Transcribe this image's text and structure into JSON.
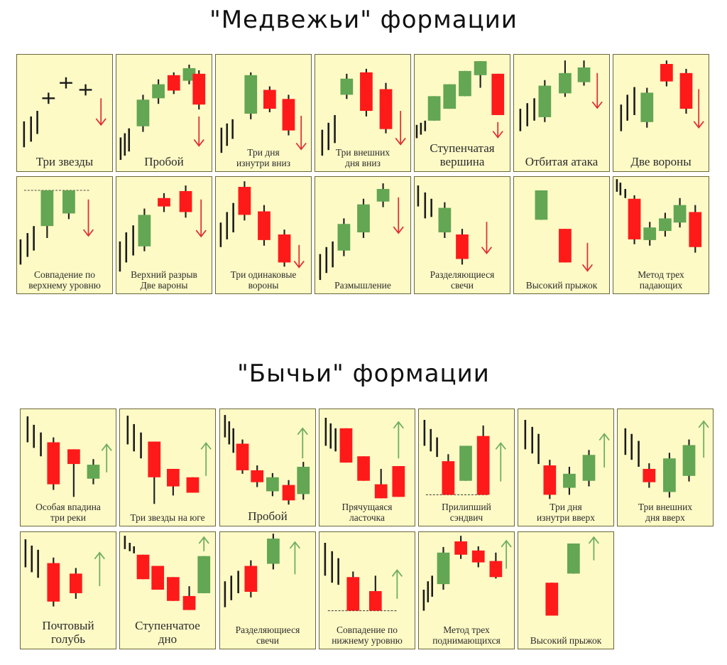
{
  "titles": {
    "bearish": "\"Медвежьи\" формации",
    "bullish": "\"Бычьи\" формации"
  },
  "colors": {
    "panel_background": "#fdfac6",
    "panel_border": "#6a6638",
    "bearish_candle": "#ff1a1a",
    "bullish_candle": "#63a653",
    "trend_line": "#1a1a1a",
    "down_arrow": "#e03030",
    "up_arrow": "#6fae5f"
  },
  "sections": {
    "bearish": {
      "signal": "down-arrow-icon",
      "patterns": [
        {
          "label": "Три звезды"
        },
        {
          "label": "Пробой"
        },
        {
          "label": "Три дня\nизнутри вниз"
        },
        {
          "label": "Три внешних\nдня вниз"
        },
        {
          "label": "Ступенчатая\nвершина"
        },
        {
          "label": "Отбитая атака"
        },
        {
          "label": "Две вороны"
        },
        {
          "label": "Совпадение по\nверхнему уровню"
        },
        {
          "label": "Верхний разрыв\nДве вароны"
        },
        {
          "label": "Три одинаковые\nвороны"
        },
        {
          "label": "Размышление"
        },
        {
          "label": "Разделяющиеся\nсвечи"
        },
        {
          "label": "Высокий прыжок"
        },
        {
          "label": "Метод трех\nпадающих"
        }
      ]
    },
    "bullish": {
      "signal": "up-arrow-icon",
      "patterns": [
        {
          "label": "Особая впадина\nтри реки"
        },
        {
          "label": "Три звезды на юге"
        },
        {
          "label": "Пробой"
        },
        {
          "label": "Прячущаяся\nласточка"
        },
        {
          "label": "Прилипший\nсэндвич"
        },
        {
          "label": "Три дня\nизнутри вверх"
        },
        {
          "label": "Три внешних\nдня вверх"
        },
        {
          "label": "Почтовый\nголубь"
        },
        {
          "label": "Ступенчатое\nдно"
        },
        {
          "label": "Разделяющиеся\nсвечи"
        },
        {
          "label": "Совпадение по\nнижнему уровню"
        },
        {
          "label": "Метод трех\nподнимающихся"
        },
        {
          "label": "Высокий прыжок"
        }
      ]
    }
  }
}
